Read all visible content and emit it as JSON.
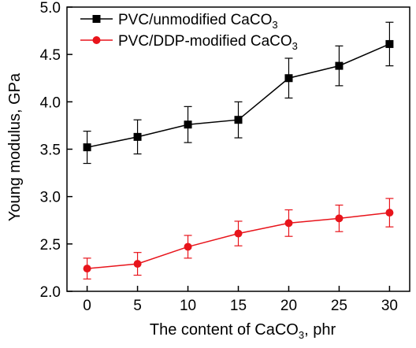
{
  "chart_data": {
    "type": "line",
    "xlabel": "The content of CaCO",
    "xlabel_sub": "3",
    "xlabel_suffix": ", phr",
    "ylabel": "Young modulus, GPa",
    "xlim": [
      -2,
      32
    ],
    "ylim": [
      2.0,
      5.0
    ],
    "x": [
      0,
      5,
      10,
      15,
      20,
      25,
      30
    ],
    "xticks": [
      "0",
      "5",
      "10",
      "15",
      "20",
      "25",
      "30"
    ],
    "yticks": [
      "2.0",
      "2.5",
      "3.0",
      "3.5",
      "4.0",
      "4.5",
      "5.0"
    ],
    "grid": false,
    "legend_position": "top-left",
    "series": [
      {
        "name": "PVC/unmodified CaCO",
        "name_sub": "3",
        "marker": "square",
        "color": "#000000",
        "values": [
          3.52,
          3.63,
          3.76,
          3.81,
          4.25,
          4.38,
          4.61
        ],
        "errors": [
          0.17,
          0.18,
          0.19,
          0.19,
          0.21,
          0.21,
          0.23
        ]
      },
      {
        "name": "PVC/DDP-modified CaCO",
        "name_sub": "3",
        "marker": "circle",
        "color": "#e8141b",
        "values": [
          2.24,
          2.29,
          2.47,
          2.61,
          2.72,
          2.77,
          2.83
        ],
        "errors": [
          0.11,
          0.12,
          0.12,
          0.13,
          0.14,
          0.14,
          0.15
        ]
      }
    ]
  }
}
